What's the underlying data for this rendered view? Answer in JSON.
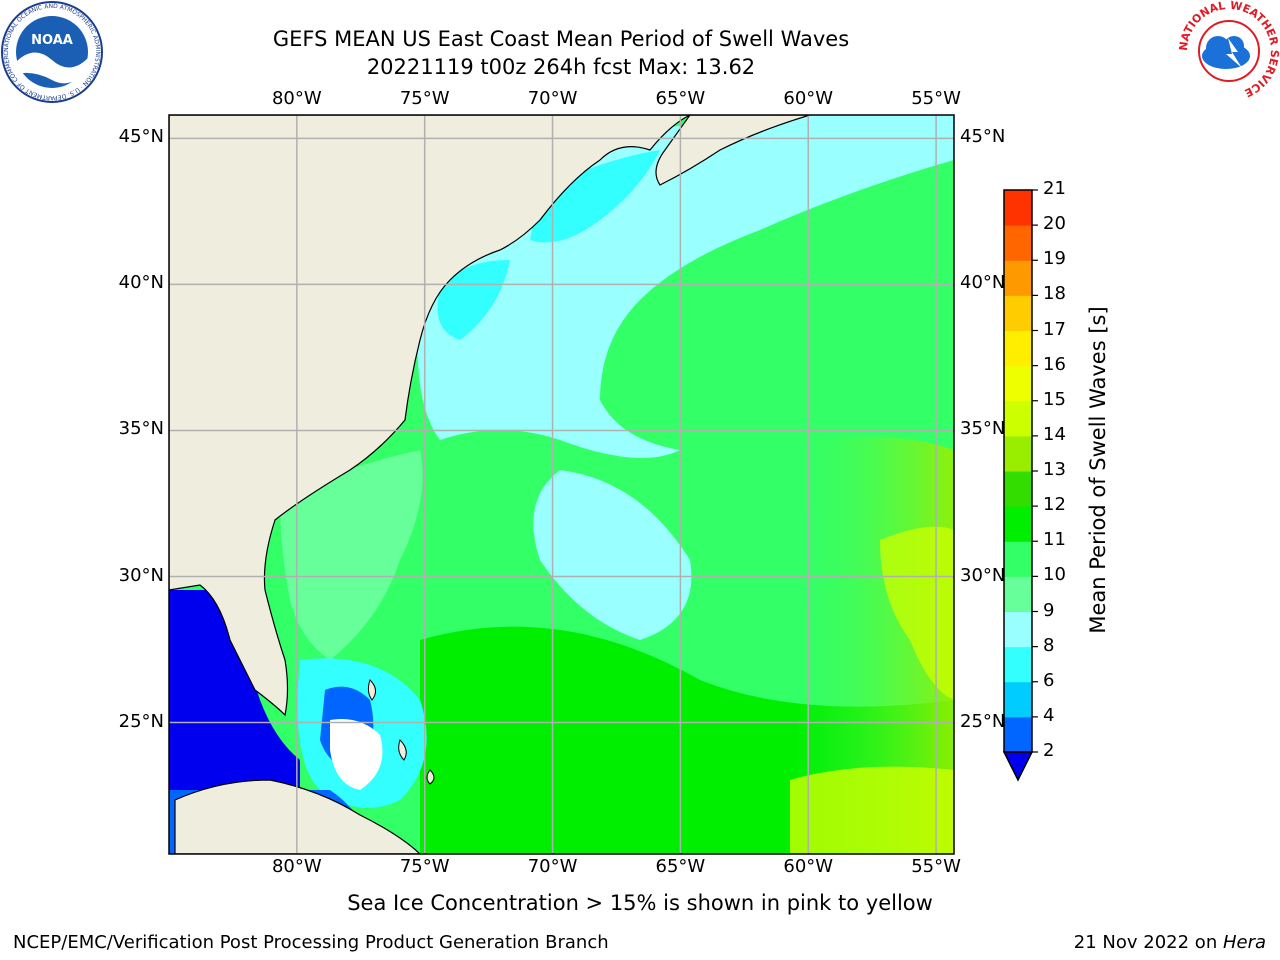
{
  "header": {
    "title_line1": "GEFS MEAN US East Coast Mean Period of Swell Waves",
    "title_line2": "20221119 t00z 264h fcst   Max: 13.62"
  },
  "logos": {
    "noaa_text": "NOAA",
    "noaa_ring_text": "NATIONAL OCEANIC AND ATMOSPHERIC ADMINISTRATION · U.S. DEPARTMENT OF COMMERCE",
    "nws_ring_text": "NATIONAL WEATHER SERVICE"
  },
  "map": {
    "lon_labels": [
      "80°W",
      "75°W",
      "70°W",
      "65°W",
      "60°W",
      "55°W"
    ],
    "lat_labels": [
      "45°N",
      "40°N",
      "35°N",
      "30°N",
      "25°N"
    ],
    "lon_values": [
      -80,
      -75,
      -70,
      -65,
      -60,
      -55
    ],
    "lat_values": [
      45,
      40,
      35,
      30,
      25
    ],
    "extent": {
      "lon_min": -85,
      "lon_max": -54.3,
      "lat_min": 20.5,
      "lat_max": 45.8
    }
  },
  "colorbar": {
    "label": "Mean Period of Swell Waves [s]",
    "ticks": [
      "2",
      "4",
      "6",
      "8",
      "9",
      "10",
      "11",
      "12",
      "13",
      "14",
      "15",
      "16",
      "17",
      "18",
      "19",
      "20",
      "21"
    ],
    "colors": [
      "#0066ff",
      "#00ccff",
      "#33ffff",
      "#99ffff",
      "#66ff99",
      "#33ff66",
      "#00ee00",
      "#33dd00",
      "#99ee00",
      "#ccff00",
      "#eeff00",
      "#ffee00",
      "#ffcc00",
      "#ff9900",
      "#ff6600",
      "#ff3300",
      "#ff0000"
    ],
    "under_color": "#0000ee"
  },
  "colors": {
    "land": "#efedde",
    "grid": "#b0b0b0",
    "wave_low": "#0000ee",
    "wave_mid": "#99ffff",
    "wave_high": "#ccff00"
  },
  "notes": {
    "sea_ice": "Sea Ice Concentration > 15% is shown in pink to yellow"
  },
  "footer": {
    "left": "NCEP/EMC/Verification Post Processing Product Generation Branch",
    "date": "21 Nov 2022 on ",
    "machine": "Hera"
  }
}
